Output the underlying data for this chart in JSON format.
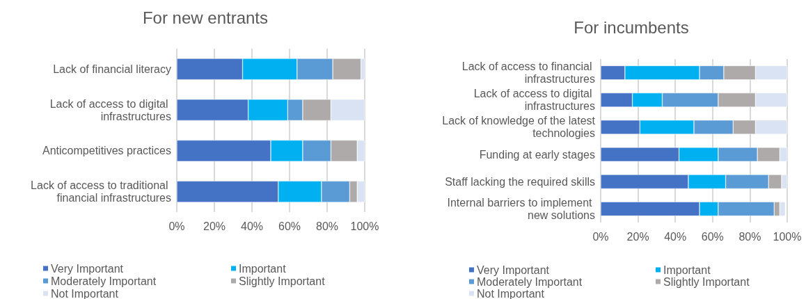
{
  "chart_data": [
    {
      "type": "bar",
      "title": "For new entrants",
      "orientation": "horizontal",
      "stacked": true,
      "categories": [
        "Lack of financial literacy",
        "Lack of access to digital infrastructures",
        "Anticompetitives practices",
        "Lack of access to traditional financial infrastructures"
      ],
      "series": [
        {
          "name": "Very Important",
          "color": "#4472c4",
          "values": [
            35,
            38,
            50,
            54
          ]
        },
        {
          "name": "Important",
          "color": "#00b0f0",
          "values": [
            29,
            21,
            17,
            23
          ]
        },
        {
          "name": "Moderately Important",
          "color": "#5b9bd5",
          "values": [
            19,
            8,
            15,
            15
          ]
        },
        {
          "name": "Slightly Important",
          "color": "#aeaaaa",
          "values": [
            15,
            15,
            14,
            4
          ]
        },
        {
          "name": "Not Important",
          "color": "#dae3f3",
          "values": [
            2,
            18,
            4,
            4
          ]
        }
      ],
      "xlim": [
        0,
        100
      ],
      "xticks": [
        {
          "value": 0,
          "label": "0%"
        },
        {
          "value": 20,
          "label": "20%"
        },
        {
          "value": 40,
          "label": "40%"
        },
        {
          "value": 60,
          "label": "60%"
        },
        {
          "value": 80,
          "label": "80%"
        },
        {
          "value": 100,
          "label": "100%"
        }
      ],
      "grid": "x",
      "legend": "bottom"
    },
    {
      "type": "bar",
      "title": "For incumbents",
      "orientation": "horizontal",
      "stacked": true,
      "categories": [
        "Lack of access to financial infrastructures",
        "Lack of access to digital infrastructures",
        "Lack of knowledge of the latest technologies",
        "Funding at early stages",
        "Staff lacking the required skills",
        "Internal barriers to implement new solutions"
      ],
      "series": [
        {
          "name": "Very Important",
          "color": "#4472c4",
          "values": [
            13,
            17,
            21,
            42,
            47,
            53
          ]
        },
        {
          "name": "Important",
          "color": "#00b0f0",
          "values": [
            40,
            16,
            29,
            21,
            20,
            10
          ]
        },
        {
          "name": "Moderately Important",
          "color": "#5b9bd5",
          "values": [
            13,
            30,
            21,
            21,
            23,
            30
          ]
        },
        {
          "name": "Slightly Important",
          "color": "#aeaaaa",
          "values": [
            17,
            20,
            12,
            12,
            7,
            3
          ]
        },
        {
          "name": "Not Important",
          "color": "#dae3f3",
          "values": [
            17,
            17,
            17,
            4,
            3,
            3
          ]
        }
      ],
      "xlim": [
        0,
        100
      ],
      "xticks": [
        {
          "value": 0,
          "label": "0%"
        },
        {
          "value": 20,
          "label": "20%"
        },
        {
          "value": 40,
          "label": "40%"
        },
        {
          "value": 60,
          "label": "60%"
        },
        {
          "value": 80,
          "label": "80%"
        },
        {
          "value": 100,
          "label": "100%"
        }
      ],
      "grid": "x",
      "legend": "bottom"
    }
  ]
}
